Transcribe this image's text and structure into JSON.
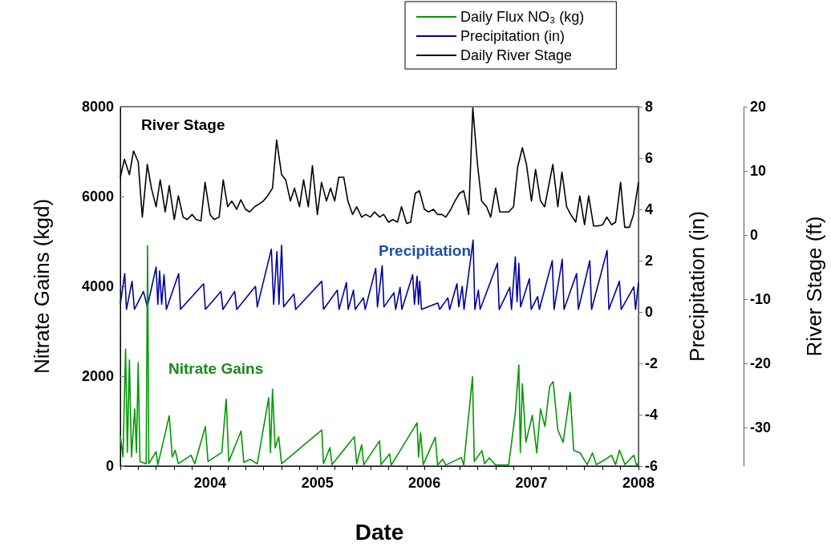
{
  "chart_data": {
    "type": "line",
    "xlabel": "Date",
    "ylabel": "Nitrate Gains (kgd)",
    "y2label": "Precipitation (in)",
    "y3label": "River Stage (ft)",
    "annotations": [
      "Nitrate Gains",
      "Precipitation",
      "River Stage"
    ],
    "legend": "top right",
    "grid": false,
    "marker": "none",
    "line_style": "solid",
    "xlim": [
      "2003-03-01",
      "2008-01-01"
    ],
    "xticks": [
      {
        "value": "2003-03-01",
        "label": null
      },
      {
        "value": "2003-05-01",
        "label": null
      },
      {
        "value": "2003-07-01",
        "label": null
      },
      {
        "value": "2003-09-01",
        "label": null
      },
      {
        "value": "2003-11-01",
        "label": null
      },
      {
        "value": "2004-01-01",
        "label": "2004"
      },
      {
        "value": "2004-03-01",
        "label": null
      },
      {
        "value": "2004-05-01",
        "label": null
      },
      {
        "value": "2004-07-01",
        "label": null
      },
      {
        "value": "2004-09-01",
        "label": null
      },
      {
        "value": "2004-11-01",
        "label": null
      },
      {
        "value": "2005-01-01",
        "label": "2005"
      },
      {
        "value": "2005-03-01",
        "label": null
      },
      {
        "value": "2005-05-01",
        "label": null
      },
      {
        "value": "2005-07-01",
        "label": null
      },
      {
        "value": "2005-09-01",
        "label": null
      },
      {
        "value": "2005-11-01",
        "label": null
      },
      {
        "value": "2006-01-01",
        "label": "2006"
      },
      {
        "value": "2006-03-01",
        "label": null
      },
      {
        "value": "2006-05-01",
        "label": null
      },
      {
        "value": "2006-07-01",
        "label": null
      },
      {
        "value": "2006-09-01",
        "label": null
      },
      {
        "value": "2006-11-01",
        "label": null
      },
      {
        "value": "2007-01-01",
        "label": "2007"
      },
      {
        "value": "2007-03-01",
        "label": null
      },
      {
        "value": "2007-05-01",
        "label": null
      },
      {
        "value": "2007-07-01",
        "label": null
      },
      {
        "value": "2007-09-01",
        "label": null
      },
      {
        "value": "2007-11-01",
        "label": null
      },
      {
        "value": "2008-01-01",
        "label": "2008"
      }
    ],
    "ylim": [
      0,
      8000
    ],
    "yticks": [
      0,
      2000,
      4000,
      6000,
      8000
    ],
    "y2lim": [
      -6,
      8
    ],
    "y2ticks": [
      -6,
      -4,
      -2,
      0,
      2,
      4,
      6,
      8
    ],
    "y3lim": [
      -36,
      20
    ],
    "y3ticks": [
      -30,
      -20,
      -10,
      0,
      10,
      20
    ],
    "series": [
      {
        "name": "Daily Flux NO₃ (kg)",
        "color": "#009900",
        "x": [
          "2003-03-01",
          "2003-03-10",
          "2003-03-19",
          "2003-03-25",
          "2003-04-01",
          "2003-04-08",
          "2003-04-19",
          "2003-04-25",
          "2003-05-01",
          "2003-05-07",
          "2003-05-28",
          "2003-06-02",
          "2003-06-06",
          "2003-07-01",
          "2003-07-07",
          "2003-08-15",
          "2003-08-25",
          "2003-09-04",
          "2003-09-15",
          "2003-10-28",
          "2003-11-10",
          "2003-12-16",
          "2003-12-25",
          "2004-02-10",
          "2004-02-25",
          "2004-03-05",
          "2004-04-16",
          "2004-04-25",
          "2004-05-16",
          "2004-06-10",
          "2004-07-19",
          "2004-07-25",
          "2004-08-01",
          "2004-08-10",
          "2004-08-22",
          "2004-09-01",
          "2005-01-16",
          "2005-01-22",
          "2005-02-13",
          "2005-02-20",
          "2005-05-07",
          "2005-05-15",
          "2005-06-01",
          "2005-06-08",
          "2005-08-01",
          "2005-08-06",
          "2005-09-04",
          "2005-09-10",
          "2005-12-07",
          "2005-12-12",
          "2005-12-19",
          "2005-12-28",
          "2006-02-07",
          "2006-02-15",
          "2006-03-04",
          "2006-03-15",
          "2006-05-07",
          "2006-05-15",
          "2006-06-14",
          "2006-06-20",
          "2006-07-16",
          "2006-07-25",
          "2006-08-10",
          "2006-09-01",
          "2006-10-15",
          "2006-10-22",
          "2006-11-07",
          "2006-11-19",
          "2006-11-24",
          "2006-12-01",
          "2006-12-13",
          "2007-01-04",
          "2007-01-19",
          "2007-02-01",
          "2007-02-16",
          "2007-03-04",
          "2007-03-16",
          "2007-04-01",
          "2007-04-19",
          "2007-05-13",
          "2007-05-25",
          "2007-06-16",
          "2007-07-10",
          "2007-07-28",
          "2007-08-10",
          "2007-09-04",
          "2007-10-01",
          "2007-10-15",
          "2007-10-28",
          "2007-11-16",
          "2007-12-16",
          "2007-12-25",
          "2008-01-01"
        ],
        "values": [
          680,
          200,
          2600,
          300,
          2360,
          200,
          1270,
          300,
          2300,
          100,
          50,
          4900,
          50,
          320,
          30,
          1120,
          200,
          350,
          50,
          240,
          50,
          880,
          100,
          300,
          1490,
          100,
          780,
          80,
          150,
          50,
          1520,
          300,
          1710,
          400,
          650,
          50,
          800,
          50,
          410,
          30,
          650,
          50,
          470,
          30,
          560,
          30,
          270,
          20,
          960,
          200,
          740,
          30,
          640,
          20,
          150,
          20,
          190,
          20,
          1990,
          100,
          340,
          50,
          180,
          20,
          20,
          350,
          1180,
          2250,
          300,
          1830,
          530,
          1130,
          290,
          1270,
          880,
          1770,
          1880,
          800,
          530,
          1640,
          350,
          290,
          30,
          290,
          30,
          120,
          240,
          30,
          350,
          30,
          240,
          20,
          60
        ]
      },
      {
        "name": "Precipitation (in)",
        "color": "#0000a0",
        "axis": "y2",
        "x": [
          "2003-03-01",
          "2003-03-16",
          "2003-03-22",
          "2003-04-10",
          "2003-04-18",
          "2003-05-19",
          "2003-06-01",
          "2003-07-01",
          "2003-07-07",
          "2003-07-13",
          "2003-07-20",
          "2003-07-28",
          "2003-08-05",
          "2003-09-16",
          "2003-09-22",
          "2003-12-10",
          "2003-12-16",
          "2004-02-07",
          "2004-02-14",
          "2004-03-25",
          "2004-04-01",
          "2004-06-04",
          "2004-06-10",
          "2004-07-28",
          "2004-08-05",
          "2004-08-16",
          "2004-08-23",
          "2004-09-01",
          "2004-09-08",
          "2004-10-13",
          "2004-10-19",
          "2005-01-16",
          "2005-01-22",
          "2005-03-10",
          "2005-03-16",
          "2005-04-10",
          "2005-04-16",
          "2005-05-04",
          "2005-05-10",
          "2005-06-07",
          "2005-06-13",
          "2005-07-19",
          "2005-07-25",
          "2005-08-10",
          "2005-08-16",
          "2005-09-19",
          "2005-09-25",
          "2005-10-10",
          "2005-10-16",
          "2005-11-22",
          "2005-11-28",
          "2005-12-07",
          "2005-12-12",
          "2005-12-16",
          "2005-12-22",
          "2006-02-16",
          "2006-02-22",
          "2006-03-22",
          "2006-03-28",
          "2006-04-22",
          "2006-04-28",
          "2006-05-10",
          "2006-05-16",
          "2006-06-16",
          "2006-06-22",
          "2006-07-04",
          "2006-07-10",
          "2006-09-07",
          "2006-09-13",
          "2006-10-19",
          "2006-10-25",
          "2006-11-07",
          "2006-11-13",
          "2006-11-19",
          "2006-11-25",
          "2006-12-25",
          "2006-12-31",
          "2007-01-22",
          "2007-01-28",
          "2007-03-13",
          "2007-03-19",
          "2007-04-16",
          "2007-04-22",
          "2007-06-04",
          "2007-06-10",
          "2007-07-19",
          "2007-07-25",
          "2007-09-16",
          "2007-09-22",
          "2007-10-28",
          "2007-11-03",
          "2007-12-16",
          "2007-12-22",
          "2008-01-01"
        ],
        "values": [
          0.3,
          1.5,
          0.1,
          1.2,
          0.1,
          0.8,
          0.2,
          1.75,
          0.3,
          1.6,
          0.3,
          1.45,
          0.1,
          1.5,
          0.1,
          1.1,
          0.1,
          0.8,
          0.1,
          0.8,
          0.1,
          1.0,
          0.2,
          2.45,
          0.3,
          2.35,
          0.3,
          2.6,
          0.2,
          0.7,
          0.1,
          1.2,
          0.1,
          0.85,
          0.1,
          1.15,
          0.1,
          0.85,
          0.1,
          0.55,
          0.1,
          1.7,
          0.2,
          1.8,
          0.2,
          0.75,
          0.1,
          0.96,
          0.1,
          1.45,
          0.3,
          1.4,
          0.3,
          1.2,
          0.1,
          0.35,
          0.1,
          0.55,
          0.1,
          1.1,
          0.2,
          1.0,
          0.1,
          2.8,
          0.1,
          0.85,
          0.1,
          1.9,
          0.1,
          0.96,
          0.1,
          2.15,
          0.4,
          1.9,
          0.2,
          1.3,
          0.1,
          0.6,
          0.1,
          2.0,
          0.1,
          2.05,
          0.1,
          1.5,
          0.1,
          2.0,
          0.1,
          2.4,
          0.1,
          1.2,
          0.1,
          0.98,
          0.1,
          1.15
        ]
      },
      {
        "name": "Daily River Stage",
        "color": "#000000",
        "axis": "y3",
        "x": [
          "2003-03-01",
          "2003-03-15",
          "2003-04-01",
          "2003-04-15",
          "2003-05-01",
          "2003-05-15",
          "2003-06-01",
          "2003-06-15",
          "2003-07-01",
          "2003-07-15",
          "2003-08-01",
          "2003-08-15",
          "2003-09-01",
          "2003-09-15",
          "2003-10-01",
          "2003-10-15",
          "2003-11-01",
          "2003-11-15",
          "2003-12-01",
          "2003-12-15",
          "2004-01-01",
          "2004-01-15",
          "2004-02-01",
          "2004-02-15",
          "2004-03-01",
          "2004-03-15",
          "2004-04-01",
          "2004-04-15",
          "2004-05-01",
          "2004-05-15",
          "2004-06-01",
          "2004-06-15",
          "2004-07-01",
          "2004-07-15",
          "2004-08-01",
          "2004-08-15",
          "2004-09-01",
          "2004-09-15",
          "2004-10-01",
          "2004-10-15",
          "2004-11-01",
          "2004-11-15",
          "2004-12-01",
          "2004-12-15",
          "2005-01-01",
          "2005-01-15",
          "2005-02-01",
          "2005-02-15",
          "2005-03-01",
          "2005-03-15",
          "2005-04-01",
          "2005-04-15",
          "2005-05-01",
          "2005-05-15",
          "2005-06-01",
          "2005-06-15",
          "2005-07-01",
          "2005-07-15",
          "2005-08-01",
          "2005-08-15",
          "2005-09-01",
          "2005-09-15",
          "2005-10-01",
          "2005-10-15",
          "2005-11-01",
          "2005-11-15",
          "2005-12-01",
          "2005-12-15",
          "2006-01-01",
          "2006-01-15",
          "2006-02-01",
          "2006-02-15",
          "2006-03-01",
          "2006-03-15",
          "2006-04-01",
          "2006-04-15",
          "2006-05-01",
          "2006-05-15",
          "2006-06-01",
          "2006-06-15",
          "2006-07-01",
          "2006-07-15",
          "2006-08-01",
          "2006-08-15",
          "2006-09-01",
          "2006-09-15",
          "2006-10-01",
          "2006-10-15",
          "2006-11-01",
          "2006-11-15",
          "2006-12-01",
          "2006-12-15",
          "2007-01-01",
          "2007-01-15",
          "2007-02-01",
          "2007-02-15",
          "2007-03-01",
          "2007-03-15",
          "2007-04-01",
          "2007-04-15",
          "2007-05-01",
          "2007-05-15",
          "2007-06-01",
          "2007-06-15",
          "2007-07-01",
          "2007-07-15",
          "2007-08-01",
          "2007-08-15",
          "2007-09-01",
          "2007-09-15",
          "2007-10-01",
          "2007-10-15",
          "2007-11-01",
          "2007-11-15",
          "2007-12-01",
          "2007-12-15",
          "2008-01-01"
        ],
        "values": [
          9.0,
          11.8,
          9.4,
          13.1,
          11.4,
          2.8,
          11.0,
          7.3,
          4.4,
          8.6,
          3.6,
          7.7,
          2.4,
          6.1,
          2.8,
          2.4,
          3.2,
          2.4,
          2.2,
          8.2,
          3.2,
          2.4,
          2.8,
          8.6,
          4.4,
          5.3,
          4.0,
          5.5,
          4.0,
          3.6,
          4.4,
          4.8,
          5.3,
          6.1,
          7.3,
          14.8,
          9.4,
          8.6,
          5.3,
          7.3,
          4.4,
          8.6,
          4.4,
          10.8,
          3.2,
          8.2,
          5.3,
          7.3,
          5.3,
          9.0,
          9.0,
          5.3,
          3.2,
          4.4,
          2.8,
          3.2,
          2.8,
          3.6,
          2.8,
          3.2,
          2.0,
          2.4,
          2.0,
          4.4,
          1.8,
          2.0,
          6.5,
          6.9,
          4.0,
          3.6,
          4.0,
          3.2,
          3.2,
          2.8,
          4.0,
          5.3,
          6.5,
          6.9,
          3.2,
          19.8,
          11.0,
          5.3,
          4.4,
          2.8,
          7.3,
          3.6,
          3.6,
          3.6,
          4.4,
          10.6,
          13.6,
          11.0,
          5.3,
          10.2,
          5.3,
          4.4,
          7.7,
          11.0,
          4.4,
          9.8,
          4.4,
          3.2,
          2.0,
          6.1,
          1.6,
          6.1,
          1.4,
          1.4,
          1.6,
          2.8,
          1.6,
          2.0,
          8.2,
          1.2,
          1.2,
          3.2,
          8.2
        ]
      }
    ]
  }
}
